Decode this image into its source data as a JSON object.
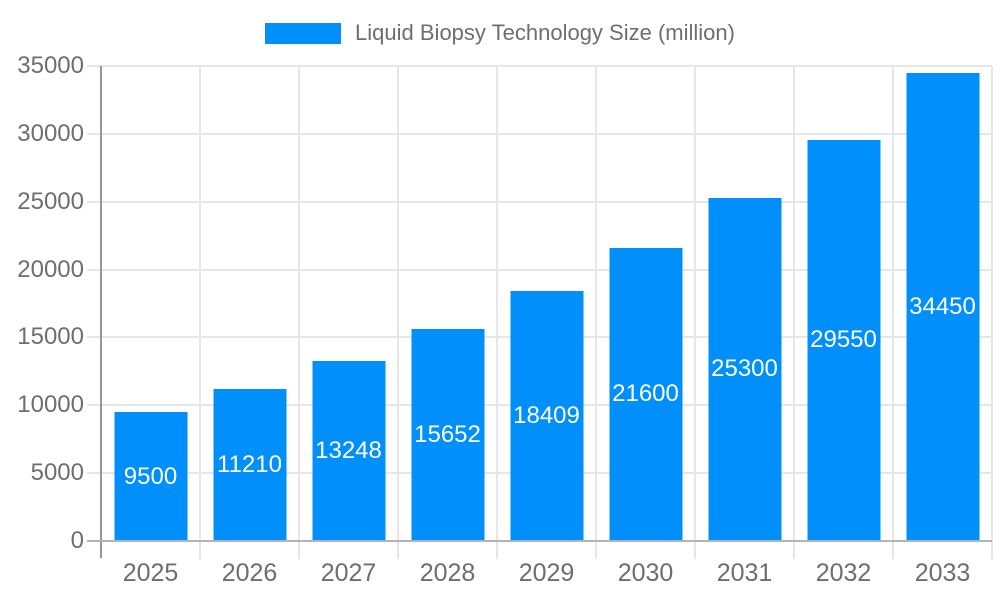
{
  "chart": {
    "legend": {
      "label": "Liquid Biopsy Technology Size (million)"
    },
    "colors": {
      "bar": "#008FFB",
      "grid": "#E6E6E6",
      "y_axis_line": "#969696",
      "x_axis_line": "#B3B3B3",
      "text": "#6E6E6E",
      "value_label": "#FFFFFF",
      "background": "#FFFFFF"
    }
  },
  "chart_data": {
    "type": "bar",
    "title": "Liquid Biopsy Technology Size (million)",
    "series": [
      {
        "name": "Liquid Biopsy Technology Size (million)",
        "values": [
          9500,
          11210,
          13248,
          15652,
          18409,
          21600,
          25300,
          29550,
          34450
        ]
      }
    ],
    "categories": [
      "2025",
      "2026",
      "2027",
      "2028",
      "2029",
      "2030",
      "2031",
      "2032",
      "2033"
    ],
    "xlabel": "",
    "ylabel": "",
    "ylim": [
      0,
      35000
    ],
    "y_tick_interval": 5000,
    "y_tick_labels": [
      "0",
      "5000",
      "10000",
      "15000",
      "20000",
      "25000",
      "30000",
      "35000"
    ],
    "grid": "horizontal and vertical light gray lines, vertical lines at category boundaries",
    "legend_position": "top-center",
    "value_labels": "white, centered inside each bar"
  }
}
